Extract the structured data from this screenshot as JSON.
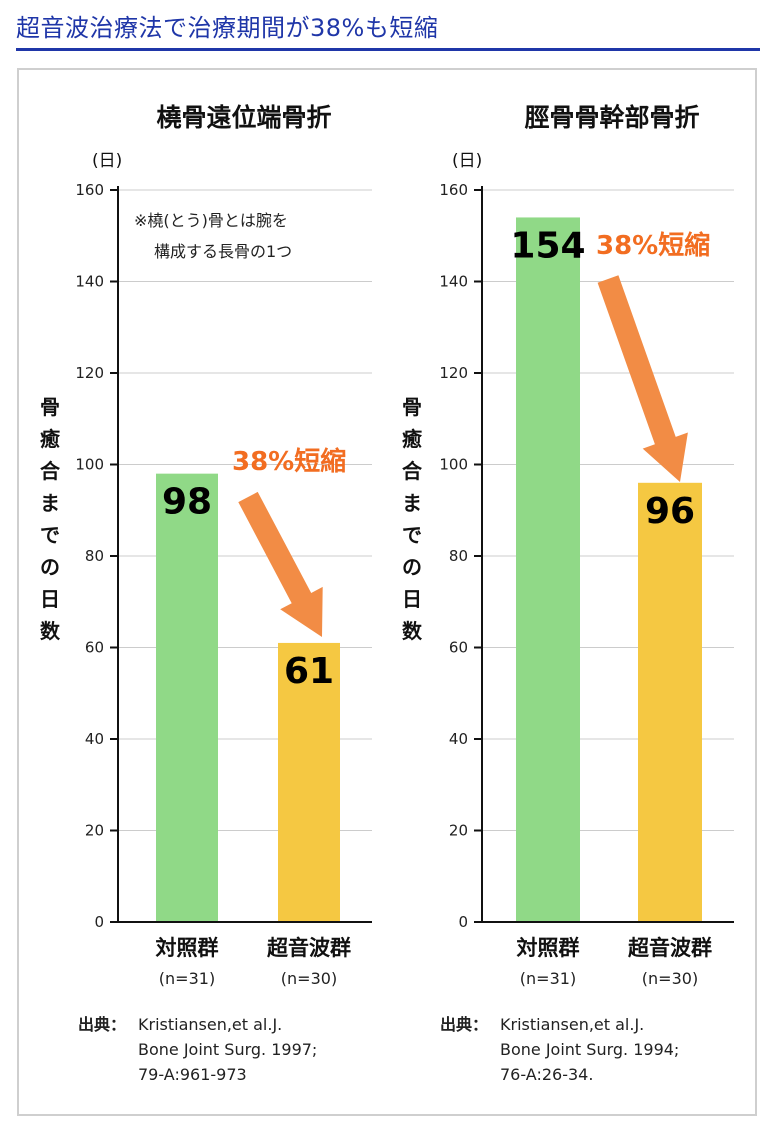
{
  "header": {
    "title": "超音波治療法で治療期間が38%も短縮"
  },
  "colors": {
    "title": "#1f36a8",
    "control_bar": "#90d987",
    "ultrasound_bar": "#f5c842",
    "arrow": "#f28c45",
    "reduction_text": "#f26d21",
    "gridline": "#cccccc",
    "axis": "#111111"
  },
  "chart_data": [
    {
      "type": "bar",
      "title": "橈骨遠位端骨折",
      "unit": "(日)",
      "ylabel": "骨癒合までの日数",
      "ylim": [
        0,
        160
      ],
      "yticks": [
        0,
        20,
        40,
        60,
        80,
        100,
        120,
        140,
        160
      ],
      "grid": true,
      "categories": [
        "対照群",
        "超音波群"
      ],
      "category_counts": [
        "(n=31)",
        "(n=30)"
      ],
      "values": [
        98,
        61
      ],
      "value_labels": [
        "98",
        "61"
      ],
      "reduction_label": "38%短縮",
      "note": [
        "※橈(とう)骨とは腕を",
        "構成する長骨の1つ"
      ],
      "source_label": "出典：",
      "source": [
        "Kristiansen,et al.J.",
        "Bone Joint Surg. 1997;",
        "79-A:961-973"
      ]
    },
    {
      "type": "bar",
      "title": "脛骨骨幹部骨折",
      "unit": "(日)",
      "ylabel": "骨癒合までの日数",
      "ylim": [
        0,
        160
      ],
      "yticks": [
        0,
        20,
        40,
        60,
        80,
        100,
        120,
        140,
        160
      ],
      "grid": true,
      "categories": [
        "対照群",
        "超音波群"
      ],
      "category_counts": [
        "(n=31)",
        "(n=30)"
      ],
      "values": [
        154,
        96
      ],
      "value_labels": [
        "154",
        "96"
      ],
      "reduction_label": "38%短縮",
      "note": [],
      "source_label": "出典：",
      "source": [
        "Kristiansen,et al.J.",
        "Bone Joint Surg. 1994;",
        "76-A:26-34."
      ]
    }
  ]
}
